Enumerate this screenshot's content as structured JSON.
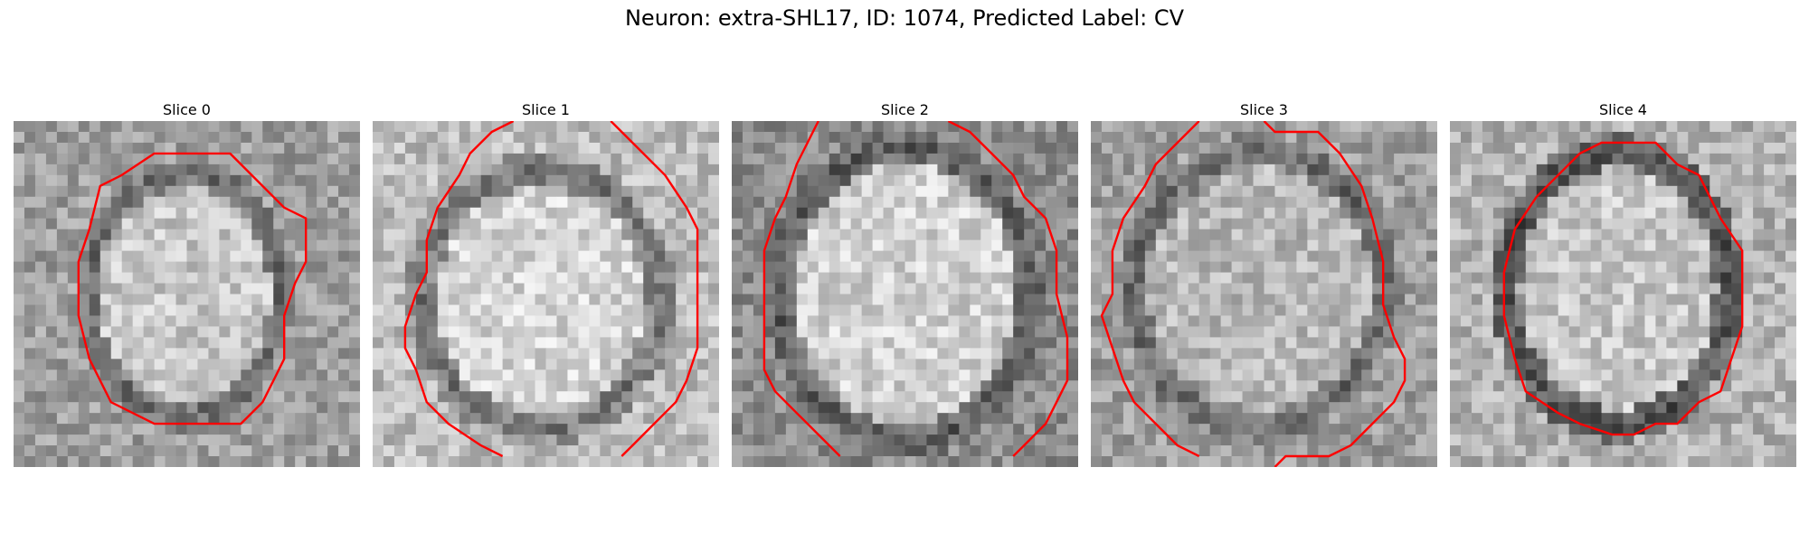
{
  "figure": {
    "title": "Neuron: extra-SHL17, ID: 1074, Predicted Label: CV"
  },
  "panels": [
    {
      "title": "Slice 0"
    },
    {
      "title": "Slice 1"
    },
    {
      "title": "Slice 2"
    },
    {
      "title": "Slice 3"
    },
    {
      "title": "Slice 4"
    }
  ],
  "style": {
    "contour_color": "#ff0000",
    "colormap": "grayscale"
  }
}
